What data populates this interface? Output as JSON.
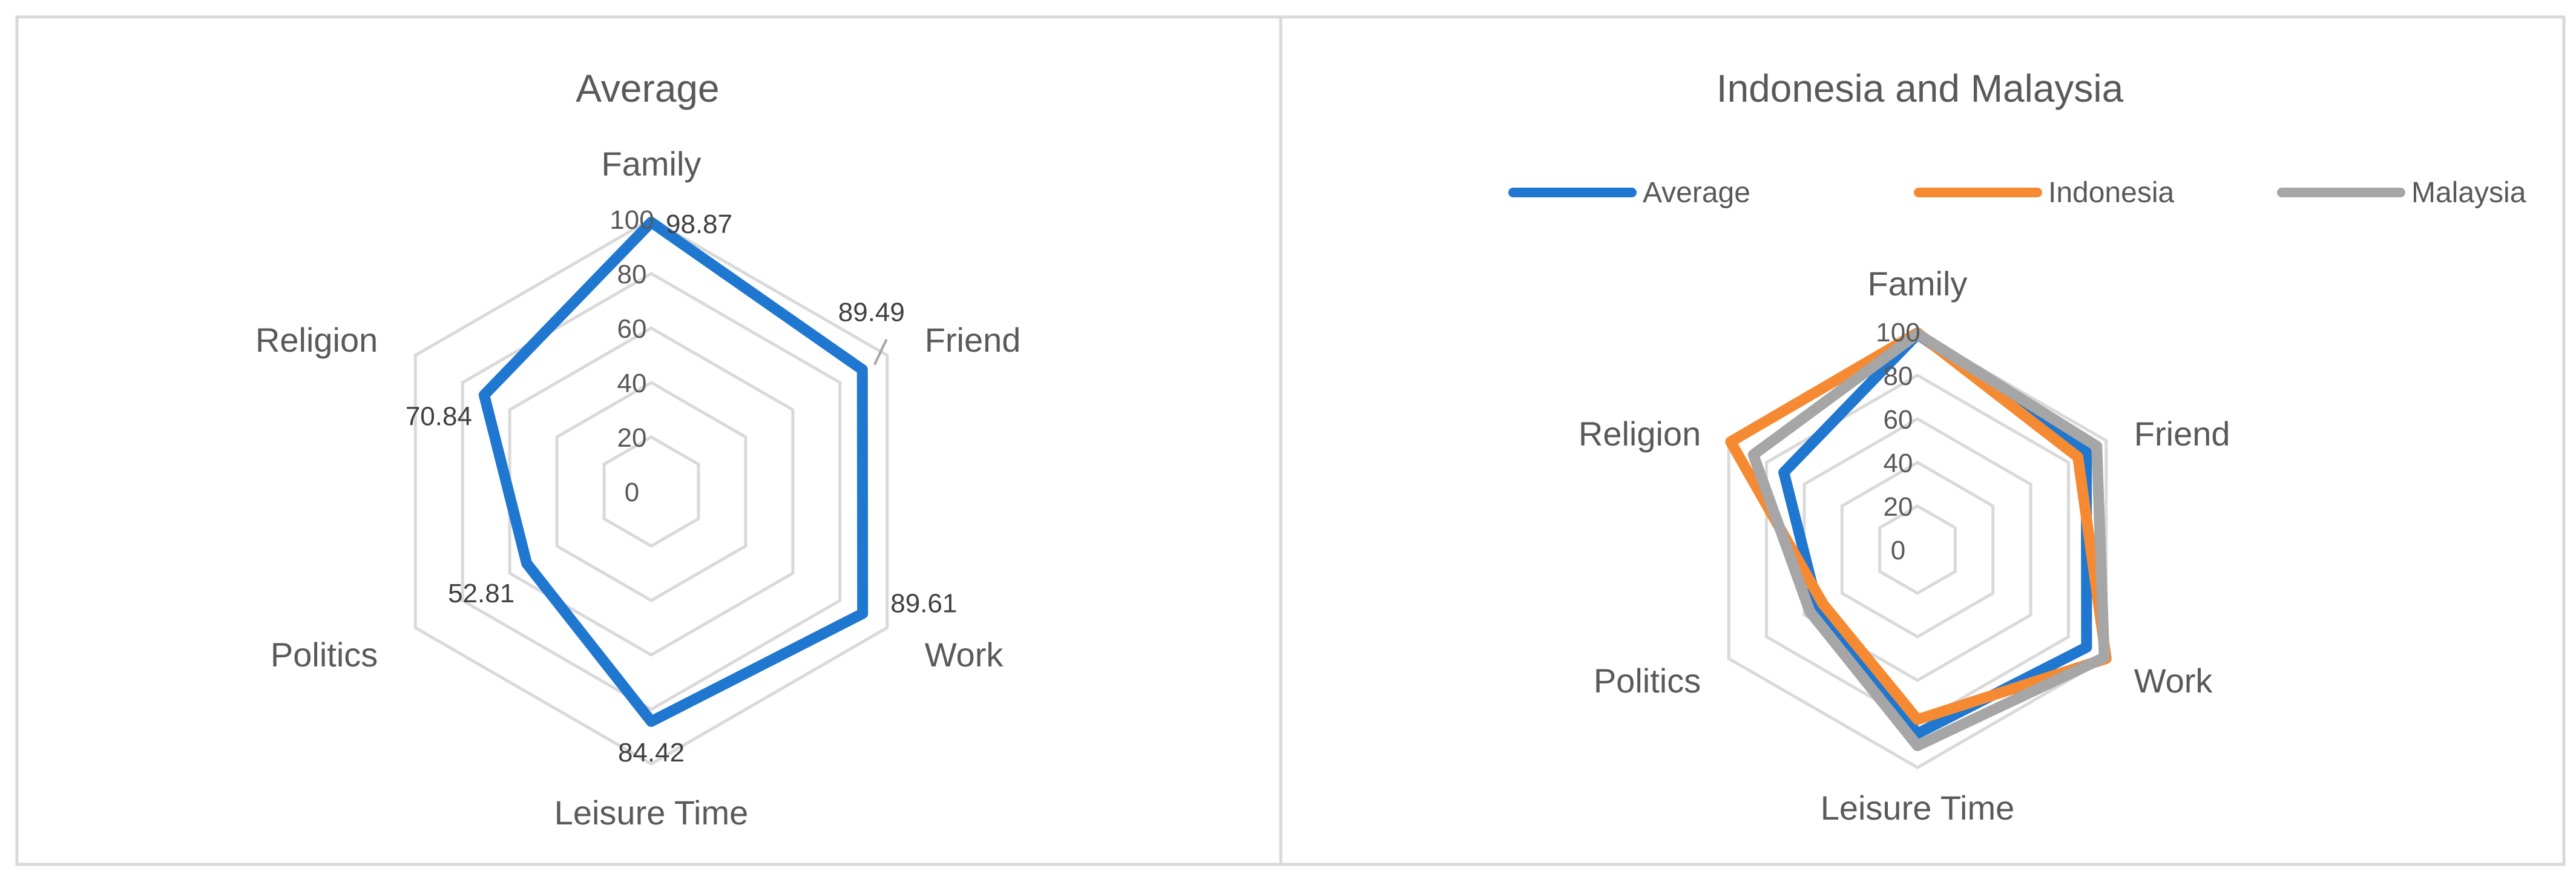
{
  "chart_data": [
    {
      "type": "radar",
      "title": "Average",
      "categories": [
        "Family",
        "Friend",
        "Work",
        "Leisure Time",
        "Politics",
        "Religion"
      ],
      "radial_axis": {
        "min": 0,
        "max": 100,
        "ticks": [
          0,
          20,
          40,
          60,
          80,
          100
        ]
      },
      "grid": true,
      "legend": "none",
      "data_labels": true,
      "series": [
        {
          "name": "Average",
          "color": "#1f77d0",
          "values": [
            98.87,
            89.49,
            89.61,
            84.42,
            52.81,
            70.84
          ]
        }
      ]
    },
    {
      "type": "radar",
      "title": "Indonesia and Malaysia",
      "categories": [
        "Family",
        "Friend",
        "Work",
        "Leisure Time",
        "Politics",
        "Religion"
      ],
      "radial_axis": {
        "min": 0,
        "max": 100,
        "ticks": [
          0,
          20,
          40,
          60,
          80,
          100
        ]
      },
      "grid": true,
      "legend": "top",
      "data_labels": false,
      "series": [
        {
          "name": "Average",
          "color": "#1f77d0",
          "values": [
            98.87,
            89.49,
            89.61,
            84.42,
            52.81,
            70.84
          ]
        },
        {
          "name": "Indonesia",
          "color": "#f58a32",
          "values": [
            99.5,
            85.0,
            100.0,
            78.0,
            50.0,
            99.0
          ]
        },
        {
          "name": "Malaysia",
          "color": "#a6a6a6",
          "values": [
            99.0,
            95.0,
            99.0,
            90.0,
            57.0,
            87.0
          ]
        }
      ]
    }
  ]
}
